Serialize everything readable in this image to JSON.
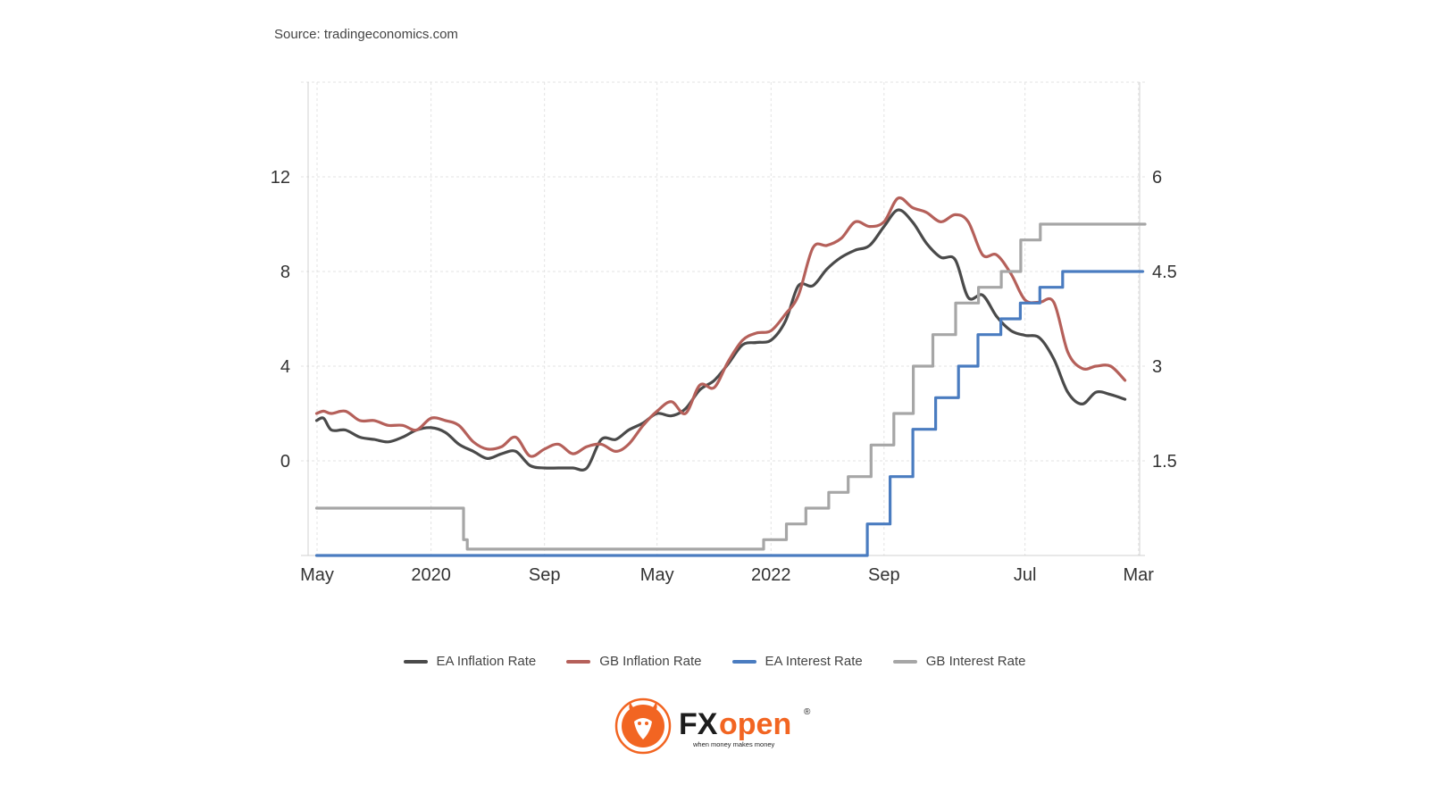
{
  "source_text": "Source: tradingeconomics.com",
  "brand": {
    "name_fx": "FX",
    "name_open": "open",
    "registered": "®",
    "tagline": "when money makes money"
  },
  "colors": {
    "ea_inflation": "#4a4a4a",
    "gb_inflation": "#b5605a",
    "ea_interest": "#4a7cc0",
    "gb_interest": "#a6a6a6",
    "brand_orange": "#f26522",
    "brand_dark": "#1d1d1d"
  },
  "chart_data": {
    "type": "line",
    "title": "",
    "xlabel": "",
    "ylabel_left": "",
    "ylabel_right": "",
    "grid": true,
    "legend_position": "bottom",
    "x_range": [
      "2019-05-01",
      "2024-03-15"
    ],
    "x_ticks": [
      {
        "date": "2019-05-01",
        "label": "May"
      },
      {
        "date": "2020-01-01",
        "label": "2020"
      },
      {
        "date": "2020-09-01",
        "label": "Sep"
      },
      {
        "date": "2021-05-01",
        "label": "May"
      },
      {
        "date": "2022-01-01",
        "label": "2022"
      },
      {
        "date": "2022-09-01",
        "label": "Sep"
      },
      {
        "date": "2023-07-01",
        "label": "Jul"
      },
      {
        "date": "2024-03-01",
        "label": "Mar"
      }
    ],
    "y_left": {
      "range": [
        -4,
        16
      ],
      "ticks": [
        0,
        4,
        8,
        12
      ]
    },
    "y_right": {
      "range": [
        0,
        7.5
      ],
      "ticks": [
        1.5,
        3,
        4.5,
        6
      ]
    },
    "series": [
      {
        "name": "EA Inflation Rate",
        "axis": "left",
        "step": false,
        "points": [
          [
            "2019-04-30",
            1.7
          ],
          [
            "2019-05-15",
            1.8
          ],
          [
            "2019-06-01",
            1.3
          ],
          [
            "2019-07-01",
            1.3
          ],
          [
            "2019-08-01",
            1.0
          ],
          [
            "2019-09-01",
            0.9
          ],
          [
            "2019-10-01",
            0.8
          ],
          [
            "2019-11-01",
            1.0
          ],
          [
            "2019-12-01",
            1.3
          ],
          [
            "2020-01-01",
            1.4
          ],
          [
            "2020-02-01",
            1.2
          ],
          [
            "2020-03-01",
            0.7
          ],
          [
            "2020-04-01",
            0.4
          ],
          [
            "2020-05-01",
            0.1
          ],
          [
            "2020-06-01",
            0.3
          ],
          [
            "2020-07-01",
            0.4
          ],
          [
            "2020-08-01",
            -0.2
          ],
          [
            "2020-09-01",
            -0.3
          ],
          [
            "2020-10-01",
            -0.3
          ],
          [
            "2020-11-01",
            -0.3
          ],
          [
            "2020-12-01",
            -0.3
          ],
          [
            "2021-01-01",
            0.9
          ],
          [
            "2021-02-01",
            0.9
          ],
          [
            "2021-03-01",
            1.3
          ],
          [
            "2021-04-01",
            1.6
          ],
          [
            "2021-05-01",
            2.0
          ],
          [
            "2021-06-01",
            1.9
          ],
          [
            "2021-07-01",
            2.2
          ],
          [
            "2021-08-01",
            3.0
          ],
          [
            "2021-09-01",
            3.4
          ],
          [
            "2021-10-01",
            4.1
          ],
          [
            "2021-11-01",
            4.9
          ],
          [
            "2021-12-01",
            5.0
          ],
          [
            "2022-01-01",
            5.1
          ],
          [
            "2022-02-01",
            5.9
          ],
          [
            "2022-03-01",
            7.4
          ],
          [
            "2022-04-01",
            7.4
          ],
          [
            "2022-05-01",
            8.1
          ],
          [
            "2022-06-01",
            8.6
          ],
          [
            "2022-07-01",
            8.9
          ],
          [
            "2022-08-01",
            9.1
          ],
          [
            "2022-09-01",
            9.9
          ],
          [
            "2022-10-01",
            10.6
          ],
          [
            "2022-11-01",
            10.1
          ],
          [
            "2022-12-01",
            9.2
          ],
          [
            "2023-01-01",
            8.6
          ],
          [
            "2023-02-01",
            8.5
          ],
          [
            "2023-03-01",
            6.9
          ],
          [
            "2023-04-01",
            7.0
          ],
          [
            "2023-05-01",
            6.1
          ],
          [
            "2023-06-01",
            5.5
          ],
          [
            "2023-07-01",
            5.3
          ],
          [
            "2023-08-01",
            5.2
          ],
          [
            "2023-09-01",
            4.3
          ],
          [
            "2023-10-01",
            2.9
          ],
          [
            "2023-11-01",
            2.4
          ],
          [
            "2023-12-01",
            2.9
          ],
          [
            "2024-01-01",
            2.8
          ],
          [
            "2024-02-01",
            2.6
          ]
        ]
      },
      {
        "name": "GB Inflation Rate",
        "axis": "left",
        "step": false,
        "points": [
          [
            "2019-04-30",
            2.0
          ],
          [
            "2019-05-15",
            2.1
          ],
          [
            "2019-06-01",
            2.0
          ],
          [
            "2019-07-01",
            2.1
          ],
          [
            "2019-08-01",
            1.7
          ],
          [
            "2019-09-01",
            1.7
          ],
          [
            "2019-10-01",
            1.5
          ],
          [
            "2019-11-01",
            1.5
          ],
          [
            "2019-12-01",
            1.3
          ],
          [
            "2020-01-01",
            1.8
          ],
          [
            "2020-02-01",
            1.7
          ],
          [
            "2020-03-01",
            1.5
          ],
          [
            "2020-04-01",
            0.8
          ],
          [
            "2020-05-01",
            0.5
          ],
          [
            "2020-06-01",
            0.6
          ],
          [
            "2020-07-01",
            1.0
          ],
          [
            "2020-08-01",
            0.2
          ],
          [
            "2020-09-01",
            0.5
          ],
          [
            "2020-10-01",
            0.7
          ],
          [
            "2020-11-01",
            0.3
          ],
          [
            "2020-12-01",
            0.6
          ],
          [
            "2021-01-01",
            0.7
          ],
          [
            "2021-02-01",
            0.4
          ],
          [
            "2021-03-01",
            0.7
          ],
          [
            "2021-04-01",
            1.5
          ],
          [
            "2021-05-01",
            2.1
          ],
          [
            "2021-06-01",
            2.5
          ],
          [
            "2021-07-01",
            2.0
          ],
          [
            "2021-08-01",
            3.2
          ],
          [
            "2021-09-01",
            3.1
          ],
          [
            "2021-10-01",
            4.2
          ],
          [
            "2021-11-01",
            5.1
          ],
          [
            "2021-12-01",
            5.4
          ],
          [
            "2022-01-01",
            5.5
          ],
          [
            "2022-02-01",
            6.2
          ],
          [
            "2022-03-01",
            7.0
          ],
          [
            "2022-04-01",
            9.0
          ],
          [
            "2022-05-01",
            9.1
          ],
          [
            "2022-06-01",
            9.4
          ],
          [
            "2022-07-01",
            10.1
          ],
          [
            "2022-08-01",
            9.9
          ],
          [
            "2022-09-01",
            10.1
          ],
          [
            "2022-10-01",
            11.1
          ],
          [
            "2022-11-01",
            10.7
          ],
          [
            "2022-12-01",
            10.5
          ],
          [
            "2023-01-01",
            10.1
          ],
          [
            "2023-02-01",
            10.4
          ],
          [
            "2023-03-01",
            10.1
          ],
          [
            "2023-04-01",
            8.7
          ],
          [
            "2023-05-01",
            8.7
          ],
          [
            "2023-06-01",
            7.9
          ],
          [
            "2023-07-01",
            6.8
          ],
          [
            "2023-08-01",
            6.7
          ],
          [
            "2023-09-01",
            6.7
          ],
          [
            "2023-10-01",
            4.6
          ],
          [
            "2023-11-01",
            3.9
          ],
          [
            "2023-12-01",
            4.0
          ],
          [
            "2024-01-01",
            4.0
          ],
          [
            "2024-02-01",
            3.4
          ]
        ]
      },
      {
        "name": "EA Interest Rate",
        "axis": "right",
        "step": true,
        "points": [
          [
            "2019-04-30",
            0.0
          ],
          [
            "2022-07-27",
            0.5
          ],
          [
            "2022-09-14",
            1.25
          ],
          [
            "2022-11-02",
            2.0
          ],
          [
            "2022-12-21",
            2.5
          ],
          [
            "2023-02-08",
            3.0
          ],
          [
            "2023-03-22",
            3.5
          ],
          [
            "2023-05-10",
            3.75
          ],
          [
            "2023-06-21",
            4.0
          ],
          [
            "2023-08-02",
            4.25
          ],
          [
            "2023-09-20",
            4.5
          ],
          [
            "2024-03-10",
            4.5
          ]
        ]
      },
      {
        "name": "GB Interest Rate",
        "axis": "right",
        "step": true,
        "points": [
          [
            "2019-04-30",
            0.75
          ],
          [
            "2020-03-11",
            0.25
          ],
          [
            "2020-03-19",
            0.1
          ],
          [
            "2021-12-16",
            0.25
          ],
          [
            "2022-02-03",
            0.5
          ],
          [
            "2022-03-17",
            0.75
          ],
          [
            "2022-05-05",
            1.0
          ],
          [
            "2022-06-16",
            1.25
          ],
          [
            "2022-08-04",
            1.75
          ],
          [
            "2022-09-22",
            2.25
          ],
          [
            "2022-11-03",
            3.0
          ],
          [
            "2022-12-15",
            3.5
          ],
          [
            "2023-02-02",
            4.0
          ],
          [
            "2023-03-23",
            4.25
          ],
          [
            "2023-05-11",
            4.5
          ],
          [
            "2023-06-22",
            5.0
          ],
          [
            "2023-08-03",
            5.25
          ],
          [
            "2024-03-15",
            5.25
          ]
        ]
      }
    ]
  }
}
